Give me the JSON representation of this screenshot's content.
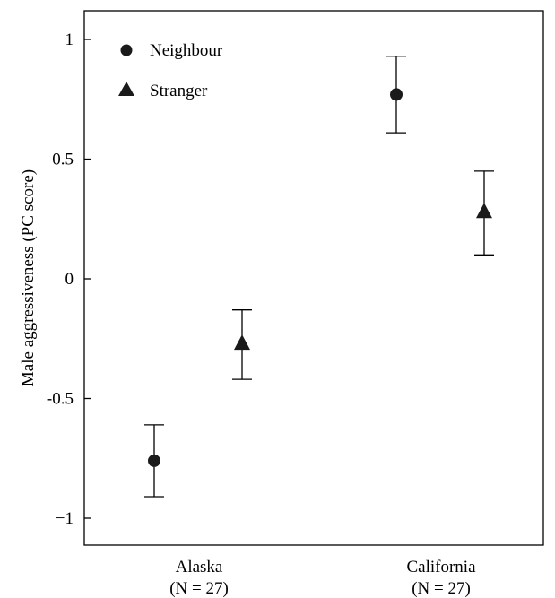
{
  "chart_data": {
    "type": "scatter",
    "ylabel": "Male aggressiveness (PC score)",
    "xlabel": "",
    "ylim": [
      -1.1,
      1.12
    ],
    "yticks": [
      {
        "value": 1,
        "label": "1"
      },
      {
        "value": 0.5,
        "label": "0.5"
      },
      {
        "value": 0,
        "label": "0"
      },
      {
        "value": -0.5,
        "label": "-0.5"
      },
      {
        "value": -1,
        "label": "−1"
      }
    ],
    "categories": [
      {
        "label": "Alaska",
        "n_label": "(N = 27)"
      },
      {
        "label": "California",
        "n_label": "(N = 27)"
      }
    ],
    "series": [
      {
        "name": "Neighbour",
        "marker": "circle",
        "values": [
          -0.76,
          0.77
        ],
        "err_low": [
          -0.91,
          0.61
        ],
        "err_high": [
          -0.61,
          0.93
        ]
      },
      {
        "name": "Stranger",
        "marker": "triangle",
        "values": [
          -0.27,
          0.28
        ],
        "err_low": [
          -0.42,
          0.1
        ],
        "err_high": [
          -0.13,
          0.45
        ]
      }
    ],
    "legend_position": "top-left",
    "grid": false,
    "marker_color": "#1a1a1a"
  }
}
